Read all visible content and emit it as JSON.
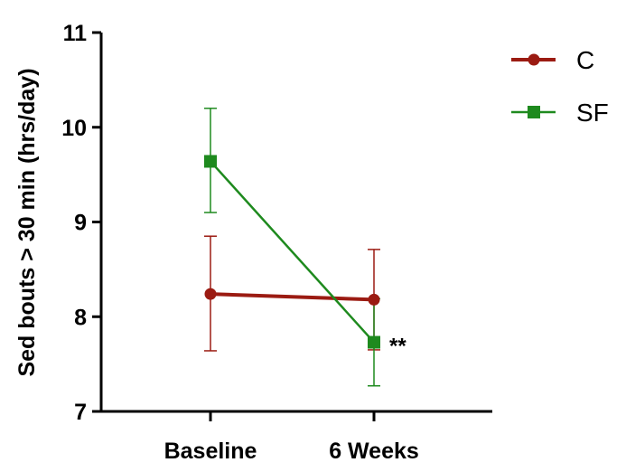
{
  "chart_data": {
    "type": "line",
    "title": "",
    "xlabel": "",
    "ylabel": "Sed bouts > 30 min (hrs/day)",
    "ylim": [
      7,
      11
    ],
    "yticks": [
      "7",
      "8",
      "9",
      "10",
      "11"
    ],
    "categories": [
      "Baseline",
      "6 Weeks"
    ],
    "grid": false,
    "legend_position": "top-right",
    "series": [
      {
        "name": "C",
        "color": "#9b1b12",
        "marker": "circle",
        "values": [
          8.24,
          8.18
        ],
        "error_low": [
          7.64,
          7.65
        ],
        "error_high": [
          8.85,
          8.71
        ]
      },
      {
        "name": "SF",
        "color": "#1e8a1e",
        "marker": "square",
        "values": [
          9.64,
          7.73
        ],
        "error_low": [
          9.1,
          7.27
        ],
        "error_high": [
          10.2,
          8.19
        ]
      }
    ],
    "annotations": [
      {
        "text": "**",
        "category": "6 Weeks",
        "series": "SF"
      }
    ]
  }
}
